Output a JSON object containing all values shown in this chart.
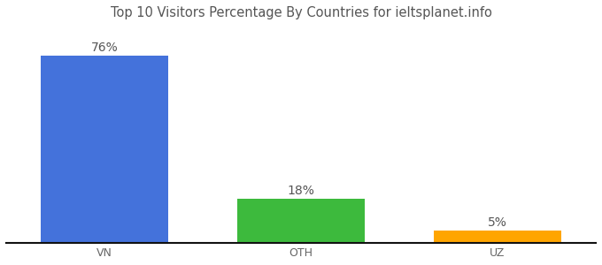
{
  "categories": [
    "VN",
    "OTH",
    "UZ"
  ],
  "values": [
    76,
    18,
    5
  ],
  "bar_colors": [
    "#4472db",
    "#3dba3d",
    "#ffa500"
  ],
  "labels": [
    "76%",
    "18%",
    "5%"
  ],
  "title": "Top 10 Visitors Percentage By Countries for ieltsplanet.info",
  "ylim": [
    0,
    88
  ],
  "background_color": "#ffffff",
  "bar_width": 0.65,
  "label_fontsize": 10,
  "tick_fontsize": 9,
  "title_fontsize": 10.5
}
